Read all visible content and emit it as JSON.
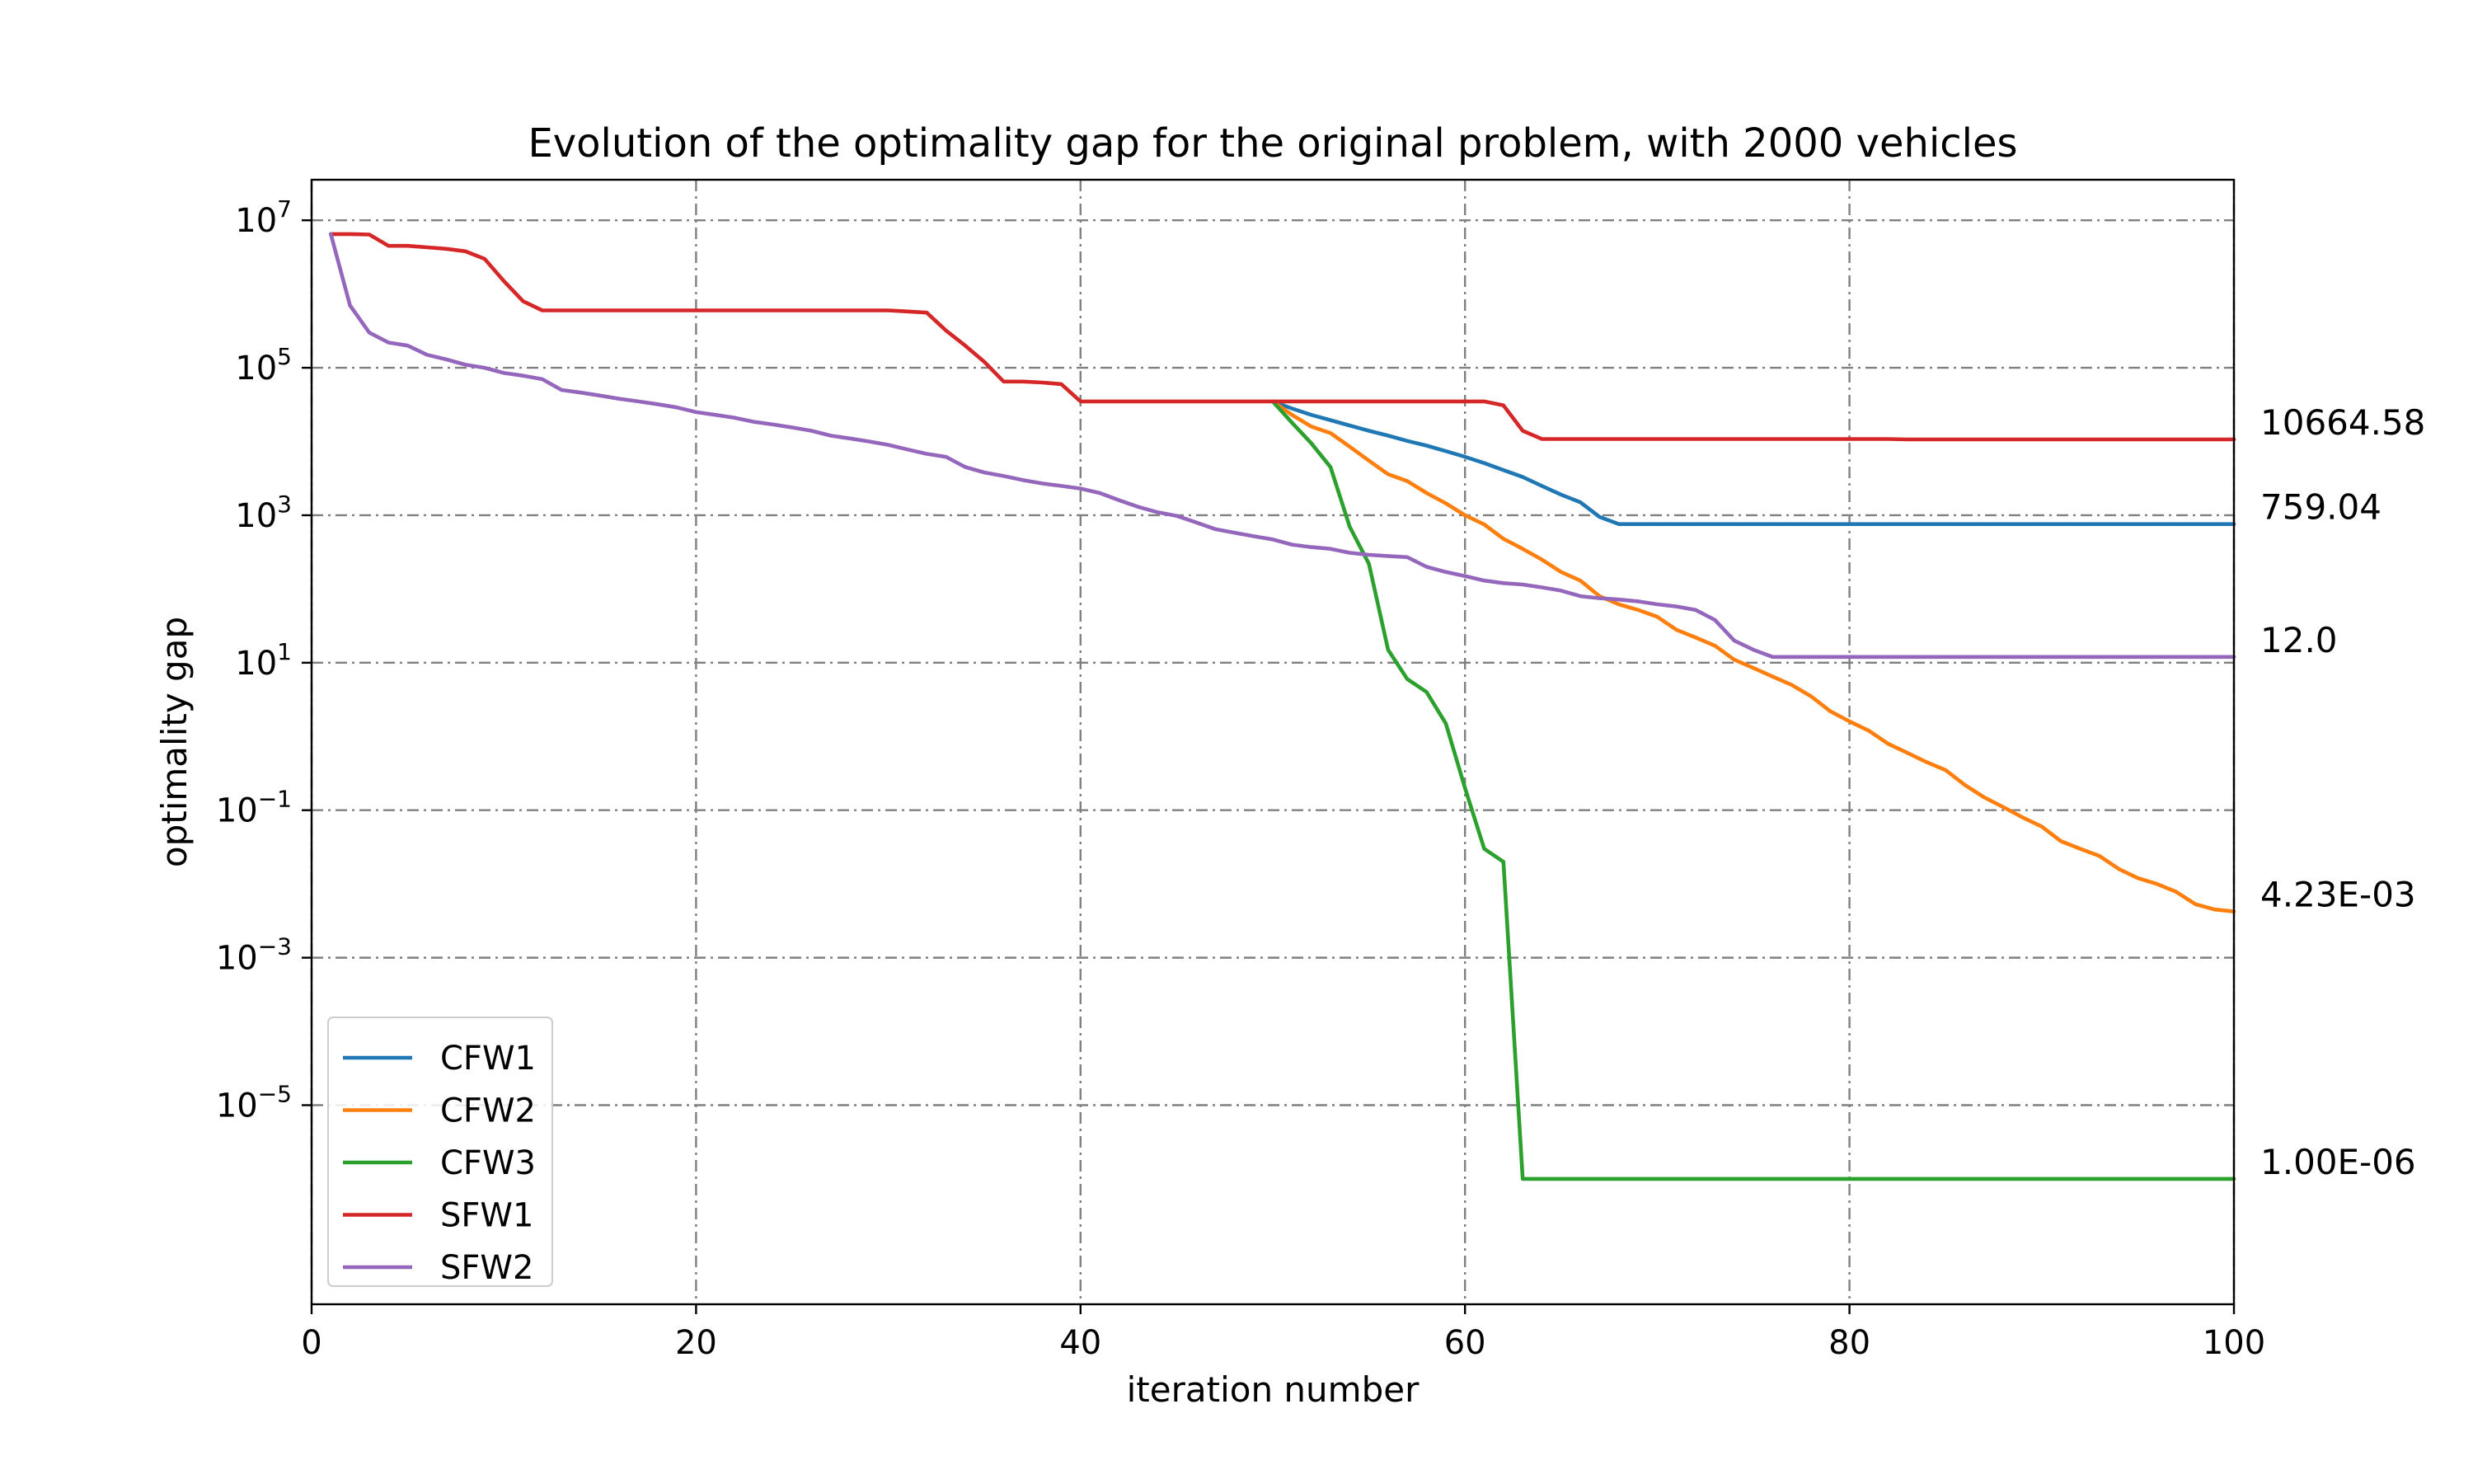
{
  "chart_data": {
    "type": "line",
    "title": "Evolution of the optimality gap for the original problem, with 2000 vehicles",
    "xlabel": "iteration number",
    "ylabel": "optimality gap",
    "xlim": [
      0,
      100
    ],
    "ylim_log10": [
      -7.7,
      7.55
    ],
    "yscale": "log",
    "grid": true,
    "legend_position": "lower-left",
    "x_ticks": [
      {
        "value": 0,
        "label": "0"
      },
      {
        "value": 20,
        "label": "20"
      },
      {
        "value": 40,
        "label": "40"
      },
      {
        "value": 60,
        "label": "60"
      },
      {
        "value": 80,
        "label": "80"
      },
      {
        "value": 100,
        "label": "100"
      }
    ],
    "y_ticks": [
      {
        "exp": 7,
        "base": "10",
        "sup": "7"
      },
      {
        "exp": 5,
        "base": "10",
        "sup": "5"
      },
      {
        "exp": 3,
        "base": "10",
        "sup": "3"
      },
      {
        "exp": 1,
        "base": "10",
        "sup": "1"
      },
      {
        "exp": -1,
        "base": "10",
        "sup": "−1"
      },
      {
        "exp": -3,
        "base": "10",
        "sup": "−3"
      },
      {
        "exp": -5,
        "base": "10",
        "sup": "−5"
      }
    ],
    "series": [
      {
        "name": "CFW1",
        "color": "#1f77b4",
        "end_label": "759.04",
        "points": [
          [
            50,
            35000
          ],
          [
            51,
            28000
          ],
          [
            52,
            23000
          ],
          [
            53,
            19500
          ],
          [
            54,
            16500
          ],
          [
            55,
            14000
          ],
          [
            56,
            12000
          ],
          [
            57,
            10200
          ],
          [
            58,
            8800
          ],
          [
            59,
            7400
          ],
          [
            60,
            6200
          ],
          [
            61,
            5100
          ],
          [
            62,
            4100
          ],
          [
            63,
            3300
          ],
          [
            64,
            2500
          ],
          [
            65,
            1900
          ],
          [
            66,
            1500
          ],
          [
            67,
            950
          ],
          [
            68,
            759.04
          ],
          [
            100,
            759.04
          ]
        ]
      },
      {
        "name": "CFW2",
        "color": "#ff7f0e",
        "end_label": "4.23E-03",
        "points": [
          [
            50,
            35000
          ],
          [
            51,
            23000
          ],
          [
            52,
            16000
          ],
          [
            53,
            13000
          ],
          [
            54,
            8500
          ],
          [
            55,
            5500
          ],
          [
            56,
            3600
          ],
          [
            57,
            2900
          ],
          [
            58,
            2000
          ],
          [
            59,
            1450
          ],
          [
            60,
            1000
          ],
          [
            61,
            750
          ],
          [
            62,
            480
          ],
          [
            63,
            350
          ],
          [
            64,
            250
          ],
          [
            65,
            170
          ],
          [
            66,
            130
          ],
          [
            67,
            80
          ],
          [
            68,
            62
          ],
          [
            69,
            52
          ],
          [
            70,
            42
          ],
          [
            71,
            28
          ],
          [
            72,
            22
          ],
          [
            73,
            17
          ],
          [
            74,
            11
          ],
          [
            75,
            8.5
          ],
          [
            76,
            6.5
          ],
          [
            77,
            5
          ],
          [
            78,
            3.5
          ],
          [
            79,
            2.2
          ],
          [
            80,
            1.6
          ],
          [
            81,
            1.2
          ],
          [
            82,
            0.8
          ],
          [
            83,
            0.6
          ],
          [
            84,
            0.45
          ],
          [
            85,
            0.35
          ],
          [
            86,
            0.22
          ],
          [
            87,
            0.15
          ],
          [
            88,
            0.11
          ],
          [
            89,
            0.08
          ],
          [
            90,
            0.06
          ],
          [
            91,
            0.038
          ],
          [
            92,
            0.03
          ],
          [
            93,
            0.024
          ],
          [
            94,
            0.016
          ],
          [
            95,
            0.012
          ],
          [
            96,
            0.01
          ],
          [
            97,
            0.0078
          ],
          [
            98,
            0.0053
          ],
          [
            99,
            0.0045
          ],
          [
            100,
            0.00423
          ]
        ]
      },
      {
        "name": "CFW3",
        "color": "#2ca02c",
        "end_label": "1.00E-06",
        "points": [
          [
            50,
            35000
          ],
          [
            51,
            18000
          ],
          [
            52,
            9500
          ],
          [
            53,
            4500
          ],
          [
            54,
            700
          ],
          [
            55,
            220
          ],
          [
            56,
            15
          ],
          [
            57,
            6
          ],
          [
            58,
            4
          ],
          [
            59,
            1.5
          ],
          [
            60,
            0.2
          ],
          [
            61,
            0.03
          ],
          [
            62,
            0.02
          ],
          [
            63,
            1e-06
          ],
          [
            100,
            1e-06
          ]
        ]
      },
      {
        "name": "SFW1",
        "color": "#d62728",
        "end_label": "10664.58",
        "points": [
          [
            1,
            6500000
          ],
          [
            2,
            6500000
          ],
          [
            3,
            6400000
          ],
          [
            4,
            4500000
          ],
          [
            5,
            4500000
          ],
          [
            6,
            4300000
          ],
          [
            7,
            4100000
          ],
          [
            8,
            3800000
          ],
          [
            9,
            3000000
          ],
          [
            10,
            1500000
          ],
          [
            11,
            800000
          ],
          [
            12,
            600000
          ],
          [
            13,
            600000
          ],
          [
            30,
            600000
          ],
          [
            31,
            580000
          ],
          [
            32,
            560000
          ],
          [
            33,
            320000
          ],
          [
            34,
            200000
          ],
          [
            35,
            120000
          ],
          [
            36,
            65000
          ],
          [
            37,
            65000
          ],
          [
            38,
            63000
          ],
          [
            39,
            60000
          ],
          [
            40,
            35000
          ],
          [
            61,
            35000
          ],
          [
            62,
            31000
          ],
          [
            63,
            14000
          ],
          [
            64,
            10800
          ],
          [
            82,
            10800
          ],
          [
            83,
            10664.58
          ],
          [
            100,
            10664.58
          ]
        ]
      },
      {
        "name": "SFW2",
        "color": "#9467bd",
        "end_label": "12.0",
        "points": [
          [
            1,
            6500000
          ],
          [
            2,
            700000
          ],
          [
            3,
            300000
          ],
          [
            4,
            220000
          ],
          [
            5,
            200000
          ],
          [
            6,
            150000
          ],
          [
            7,
            130000
          ],
          [
            8,
            110000
          ],
          [
            9,
            100000
          ],
          [
            10,
            85000
          ],
          [
            11,
            78000
          ],
          [
            12,
            70000
          ],
          [
            13,
            50000
          ],
          [
            14,
            46000
          ],
          [
            15,
            42000
          ],
          [
            16,
            38000
          ],
          [
            17,
            35000
          ],
          [
            18,
            32000
          ],
          [
            19,
            29000
          ],
          [
            20,
            25000
          ],
          [
            21,
            23000
          ],
          [
            22,
            21000
          ],
          [
            23,
            18500
          ],
          [
            24,
            17000
          ],
          [
            25,
            15500
          ],
          [
            26,
            14000
          ],
          [
            27,
            12000
          ],
          [
            28,
            11000
          ],
          [
            29,
            10000
          ],
          [
            30,
            9000
          ],
          [
            31,
            7800
          ],
          [
            32,
            6800
          ],
          [
            33,
            6200
          ],
          [
            34,
            4500
          ],
          [
            35,
            3800
          ],
          [
            36,
            3400
          ],
          [
            37,
            3000
          ],
          [
            38,
            2700
          ],
          [
            39,
            2500
          ],
          [
            40,
            2300
          ],
          [
            41,
            2000
          ],
          [
            42,
            1600
          ],
          [
            43,
            1300
          ],
          [
            44,
            1100
          ],
          [
            45,
            980
          ],
          [
            46,
            800
          ],
          [
            47,
            650
          ],
          [
            48,
            580
          ],
          [
            49,
            520
          ],
          [
            50,
            470
          ],
          [
            51,
            400
          ],
          [
            52,
            370
          ],
          [
            53,
            350
          ],
          [
            54,
            310
          ],
          [
            55,
            290
          ],
          [
            56,
            280
          ],
          [
            57,
            270
          ],
          [
            58,
            200
          ],
          [
            59,
            170
          ],
          [
            60,
            150
          ],
          [
            61,
            130
          ],
          [
            62,
            120
          ],
          [
            63,
            115
          ],
          [
            64,
            105
          ],
          [
            65,
            95
          ],
          [
            66,
            80
          ],
          [
            67,
            75
          ],
          [
            68,
            72
          ],
          [
            69,
            68
          ],
          [
            70,
            62
          ],
          [
            71,
            58
          ],
          [
            72,
            52
          ],
          [
            73,
            38
          ],
          [
            74,
            20
          ],
          [
            75,
            15
          ],
          [
            76,
            12
          ],
          [
            100,
            12
          ]
        ]
      }
    ]
  }
}
